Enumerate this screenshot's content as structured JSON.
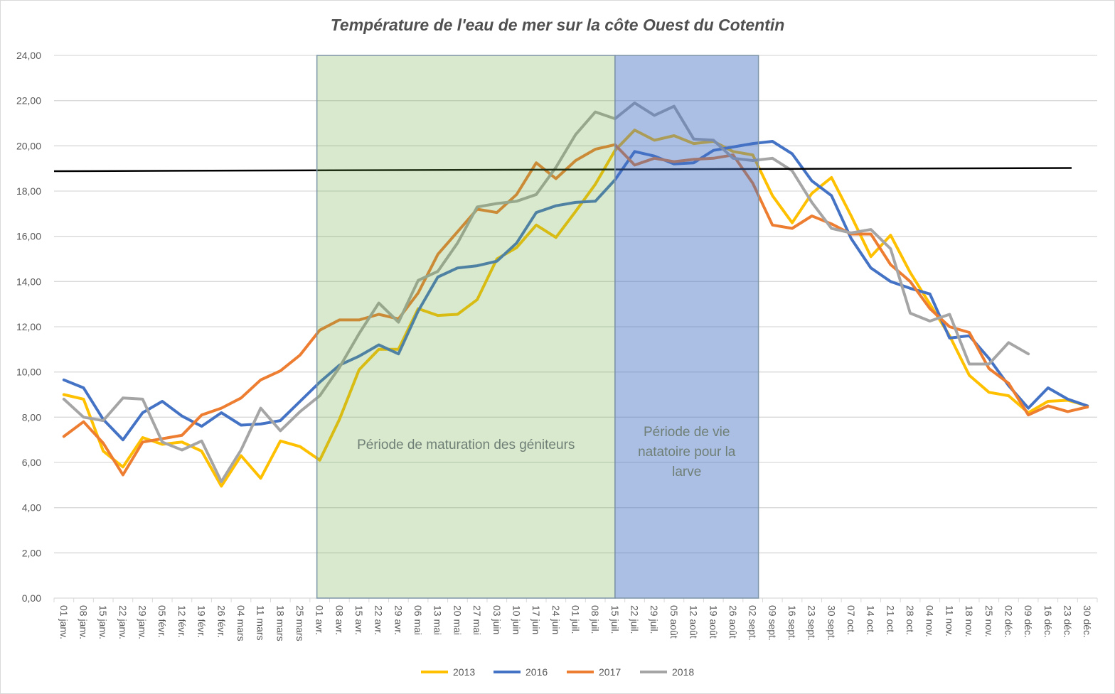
{
  "chart_data": {
    "type": "line",
    "title": "Température  de l'eau de mer sur la côte Ouest du Cotentin",
    "xlabel": "",
    "ylabel": "",
    "ylim": [
      0,
      24
    ],
    "ytick_step": 2,
    "ytick_labels": [
      "0,00",
      "2,00",
      "4,00",
      "6,00",
      "8,00",
      "10,00",
      "12,00",
      "14,00",
      "16,00",
      "18,00",
      "20,00",
      "22,00",
      "24,00"
    ],
    "grid": true,
    "legend_position": "bottom",
    "categories": [
      "01 janv.",
      "08 janv.",
      "15 janv.",
      "22 janv.",
      "29 janv.",
      "05 févr.",
      "12 févr.",
      "19 févr.",
      "26 févr.",
      "04 mars",
      "11 mars",
      "18 mars",
      "25 mars",
      "01 avr.",
      "08 avr.",
      "15 avr.",
      "22 avr.",
      "29 avr.",
      "06 mai",
      "13 mai",
      "20 mai",
      "27 mai",
      "03 juin",
      "10 juin",
      "17 juin",
      "24 juin",
      "01 juil.",
      "08 juil.",
      "15 juil.",
      "22 juil.",
      "29 juil.",
      "05 août",
      "12 août",
      "19 août",
      "26 août",
      "02 sept.",
      "09 sept.",
      "16 sept.",
      "23 sept.",
      "30 sept.",
      "07 oct.",
      "14 oct.",
      "21 oct.",
      "28 oct.",
      "04 nov.",
      "11 nov.",
      "18 nov.",
      "25 nov.",
      "02 déc.",
      "09 déc.",
      "16 déc.",
      "23 déc.",
      "30 déc."
    ],
    "series": [
      {
        "name": "2013",
        "color": "#FFC000",
        "values": [
          9.0,
          8.8,
          6.5,
          5.8,
          7.1,
          6.8,
          6.9,
          6.5,
          4.95,
          6.3,
          5.3,
          6.95,
          6.7,
          6.1,
          7.9,
          10.1,
          11.0,
          11.0,
          12.8,
          12.5,
          12.55,
          13.2,
          15.0,
          15.5,
          16.5,
          15.95,
          17.1,
          18.3,
          19.8,
          20.7,
          20.25,
          20.45,
          20.1,
          20.2,
          19.75,
          19.6,
          17.8,
          16.6,
          17.9,
          18.6,
          16.9,
          15.1,
          16.05,
          14.4,
          13.0,
          11.6,
          9.85,
          9.1,
          8.95,
          8.2,
          8.7,
          8.75,
          8.5
        ]
      },
      {
        "name": "2016",
        "color": "#4472C4",
        "values": [
          9.65,
          9.3,
          7.9,
          7.0,
          8.2,
          8.7,
          8.05,
          7.6,
          8.2,
          7.65,
          7.7,
          7.85,
          8.7,
          9.55,
          10.3,
          10.7,
          11.2,
          10.8,
          12.7,
          14.2,
          14.6,
          14.7,
          14.9,
          15.7,
          17.05,
          17.35,
          17.5,
          17.55,
          18.5,
          19.75,
          19.55,
          19.2,
          19.25,
          19.8,
          19.95,
          20.1,
          20.2,
          19.65,
          18.45,
          17.8,
          15.9,
          14.6,
          14.0,
          13.7,
          13.45,
          11.5,
          11.6,
          10.6,
          9.4,
          8.4,
          9.3,
          8.8,
          8.5
        ]
      },
      {
        "name": "2017",
        "color": "#ED7D31",
        "values": [
          7.15,
          7.8,
          6.85,
          5.45,
          6.9,
          7.05,
          7.2,
          8.1,
          8.4,
          8.85,
          9.65,
          10.05,
          10.75,
          11.85,
          12.3,
          12.3,
          12.55,
          12.35,
          13.5,
          15.2,
          16.2,
          17.2,
          17.05,
          17.85,
          19.25,
          18.55,
          19.35,
          19.85,
          20.05,
          19.15,
          19.45,
          19.3,
          19.4,
          19.45,
          19.6,
          18.35,
          16.5,
          16.35,
          16.9,
          16.55,
          16.1,
          16.1,
          14.75,
          14.0,
          12.8,
          12.0,
          11.75,
          10.15,
          9.5,
          8.1,
          8.5,
          8.25,
          8.45
        ]
      },
      {
        "name": "2018",
        "color": "#A5A5A5",
        "values": [
          8.8,
          8.0,
          7.85,
          8.85,
          8.8,
          6.9,
          6.55,
          6.95,
          5.15,
          6.55,
          8.4,
          7.4,
          8.25,
          8.95,
          10.2,
          11.7,
          13.05,
          12.2,
          14.05,
          14.45,
          15.7,
          17.3,
          17.45,
          17.55,
          17.85,
          19.05,
          20.5,
          21.5,
          21.2,
          21.9,
          21.35,
          21.75,
          20.3,
          20.25,
          19.45,
          19.35,
          19.45,
          18.9,
          17.5,
          16.35,
          16.15,
          16.3,
          15.45,
          12.6,
          12.25,
          12.55,
          10.35,
          10.35,
          11.3,
          10.8,
          null,
          null,
          null
        ]
      }
    ],
    "reference_line": {
      "color": "#000000",
      "start_value": 18.88,
      "end_value": 19.02
    },
    "regions": [
      {
        "label_lines": [
          "Période de maturation des géniteurs"
        ],
        "from": "01 avr.",
        "to": "15 juil.",
        "color": "#70AD47"
      },
      {
        "label_lines": [
          "Période de vie",
          "natatoire pour la",
          "larve"
        ],
        "from": "15 juil.",
        "to": "02 sept.",
        "color": "#4472C4"
      }
    ]
  }
}
